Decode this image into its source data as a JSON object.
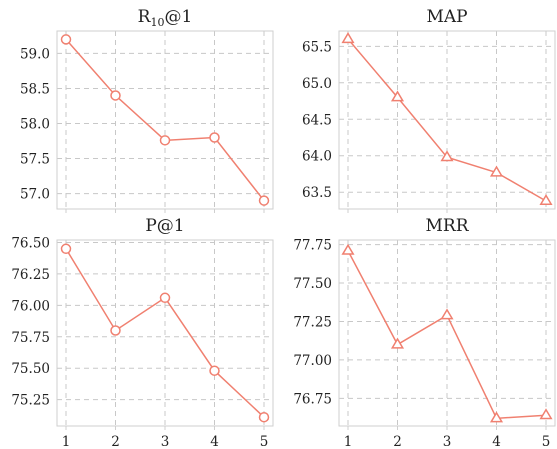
{
  "chart_data": [
    {
      "type": "line",
      "title": "R",
      "title_sub": "10",
      "title_suffix": "@1",
      "x": [
        1,
        2,
        3,
        4,
        5
      ],
      "series": [
        {
          "values": [
            59.2,
            58.4,
            57.76,
            57.8,
            56.9
          ],
          "marker": "circle"
        }
      ],
      "ylim": [
        56.78,
        59.32
      ],
      "yticks": [
        57.0,
        57.5,
        58.0,
        58.5,
        59.0
      ],
      "ytick_labels": [
        "57.0",
        "57.5",
        "58.0",
        "58.5",
        "59.0"
      ],
      "xtick_labels": [],
      "grid": true
    },
    {
      "type": "line",
      "title": "MAP",
      "x": [
        1,
        2,
        3,
        4,
        5
      ],
      "series": [
        {
          "values": [
            65.6,
            64.8,
            63.98,
            63.77,
            63.38
          ],
          "marker": "triangle"
        }
      ],
      "ylim": [
        63.27,
        65.71
      ],
      "yticks": [
        63.5,
        64.0,
        64.5,
        65.0,
        65.5
      ],
      "ytick_labels": [
        "63.5",
        "64.0",
        "64.5",
        "65.0",
        "65.5"
      ],
      "xtick_labels": [],
      "grid": true
    },
    {
      "type": "line",
      "title": "P@1",
      "x": [
        1,
        2,
        3,
        4,
        5
      ],
      "series": [
        {
          "values": [
            76.45,
            75.8,
            76.06,
            75.48,
            75.11
          ],
          "marker": "circle"
        }
      ],
      "ylim": [
        75.04,
        76.52
      ],
      "yticks": [
        75.25,
        75.5,
        75.75,
        76.0,
        76.25,
        76.5
      ],
      "ytick_labels": [
        "75.25",
        "75.50",
        "75.75",
        "76.00",
        "76.25",
        "76.50"
      ],
      "xtick_labels": [
        "1",
        "2",
        "3",
        "4",
        "5"
      ],
      "grid": true
    },
    {
      "type": "line",
      "title": "MRR",
      "x": [
        1,
        2,
        3,
        4,
        5
      ],
      "series": [
        {
          "values": [
            77.71,
            77.1,
            77.29,
            76.62,
            76.64
          ],
          "marker": "triangle"
        }
      ],
      "ylim": [
        76.57,
        77.78
      ],
      "yticks": [
        76.75,
        77.0,
        77.25,
        77.5,
        77.75
      ],
      "ytick_labels": [
        "76.75",
        "77.00",
        "77.25",
        "77.50",
        "77.75"
      ],
      "xtick_labels": [
        "1",
        "2",
        "3",
        "4",
        "5"
      ],
      "grid": true
    }
  ],
  "colors": {
    "line": "#f08070",
    "grid": "#c8c8c8",
    "frame": "#cfcfcf",
    "text": "#222222"
  }
}
